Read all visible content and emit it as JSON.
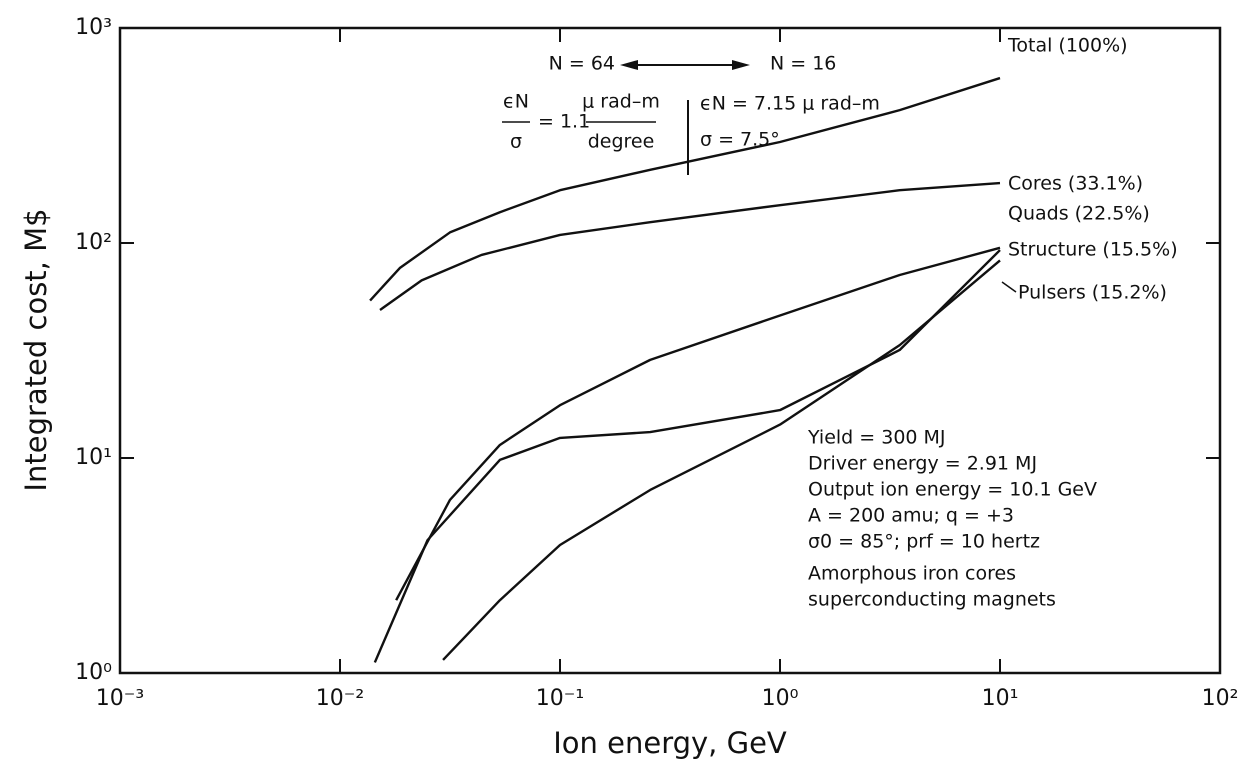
{
  "chart_data": {
    "type": "line",
    "x_label": "Ion energy, GeV",
    "y_label": "Integrated cost, M$",
    "xscale": "log",
    "yscale": "log",
    "xlim": [
      0.001,
      100
    ],
    "ylim": [
      1,
      1000
    ],
    "xticks": [
      {
        "value": 0.001,
        "label": "10⁻³"
      },
      {
        "value": 0.01,
        "label": "10⁻²"
      },
      {
        "value": 0.1,
        "label": "10⁻¹"
      },
      {
        "value": 1,
        "label": "10⁰"
      },
      {
        "value": 10,
        "label": "10¹"
      },
      {
        "value": 100,
        "label": "10²"
      }
    ],
    "yticks": [
      {
        "value": 1,
        "label": "10⁰"
      },
      {
        "value": 10,
        "label": "10¹"
      },
      {
        "value": 100,
        "label": "10²"
      },
      {
        "value": 1000,
        "label": "10³"
      }
    ],
    "series": [
      {
        "name": "Total (100%)",
        "color": "#111111",
        "x": [
          0.0137,
          0.0187,
          0.0316,
          0.0533,
          0.1,
          0.257,
          1,
          3.5,
          10
        ],
        "values": [
          54,
          76.5,
          112,
          139,
          176,
          219,
          295,
          415,
          585
        ]
      },
      {
        "name": "Cores (33.1%)",
        "color": "#111111",
        "x": [
          0.0152,
          0.0235,
          0.044,
          0.1,
          0.257,
          1,
          3.5,
          10
        ],
        "values": [
          48.8,
          67,
          88,
          109,
          125,
          150,
          176,
          190
        ]
      },
      {
        "name": "Quads (22.5%)",
        "color": "#111111",
        "x": [
          0.018,
          0.0316,
          0.0533,
          0.1,
          0.257,
          1,
          3.5,
          10
        ],
        "values": [
          2.18,
          6.38,
          11.5,
          17.6,
          28.6,
          46,
          71,
          95
        ]
      },
      {
        "name": "Structure (15.5%)",
        "color": "#111111",
        "x": [
          0.0144,
          0.025,
          0.0533,
          0.1,
          0.257,
          1,
          3.5,
          10
        ],
        "values": [
          1.12,
          4.15,
          9.8,
          12.4,
          13.2,
          16.7,
          31.8,
          92.7
        ]
      },
      {
        "name": "Pulsers (15.2%)",
        "color": "#111111",
        "x": [
          0.0294,
          0.0533,
          0.1,
          0.257,
          1,
          3.5,
          10
        ],
        "values": [
          1.15,
          2.18,
          3.94,
          7.1,
          14.3,
          33.5,
          83
        ]
      }
    ],
    "annotations": [
      "N = 64",
      "N = 16",
      "ϵN",
      "σ",
      "= 1.1",
      "μ rad–m",
      "degree",
      "ϵN = 7.15 μ rad–m",
      "σ = 7.5°"
    ],
    "parameters": [
      "Yield = 300 MJ",
      "Driver energy = 2.91 MJ",
      "Output ion energy = 10.1 GeV",
      "A = 200 amu; q = +3",
      "σ0 = 85°; prf = 10 hertz",
      "Amorphous iron cores",
      "superconducting magnets"
    ]
  }
}
